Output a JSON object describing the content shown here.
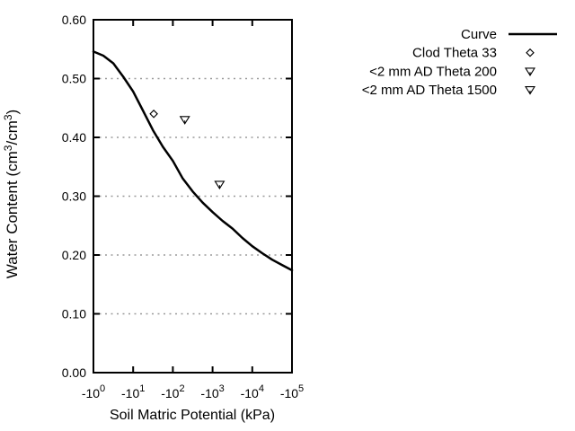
{
  "colors": {
    "foreground": "#000000",
    "grid": "#9a9a9a",
    "background": "#ffffff",
    "marker_fill": "#ffffff"
  },
  "chart_data": {
    "type": "line",
    "title": "",
    "xlabel": "Soil Matric Potential (kPa)",
    "ylabel": "Water Content (cm^3/cm^3)",
    "x_axis": {
      "scale": "negative-log10",
      "tick_labels": [
        "-10^0",
        "-10^1",
        "-10^2",
        "-10^3",
        "-10^4",
        "-10^5"
      ],
      "tick_decades": [
        0,
        1,
        2,
        3,
        4,
        5
      ],
      "range_decades": [
        0,
        5
      ]
    },
    "y_axis": {
      "tick_labels": [
        "0.00",
        "0.10",
        "0.20",
        "0.30",
        "0.40",
        "0.50",
        "0.60"
      ],
      "tick_values": [
        0.0,
        0.1,
        0.2,
        0.3,
        0.4,
        0.5,
        0.6
      ],
      "range": [
        0.0,
        0.6
      ],
      "grid_values": [
        0.1,
        0.2,
        0.3,
        0.4,
        0.5
      ]
    },
    "grid": {
      "style": "dotted",
      "horizontal": true,
      "vertical": false
    },
    "legend": {
      "position": "top-right-outside",
      "frame": false
    },
    "series": [
      {
        "name": "Curve",
        "kind": "line",
        "samples_decade_theta": [
          [
            0.0,
            0.546
          ],
          [
            0.25,
            0.539
          ],
          [
            0.5,
            0.526
          ],
          [
            0.75,
            0.503
          ],
          [
            1.0,
            0.478
          ],
          [
            1.25,
            0.445
          ],
          [
            1.5,
            0.412
          ],
          [
            1.75,
            0.384
          ],
          [
            2.0,
            0.36
          ],
          [
            2.25,
            0.33
          ],
          [
            2.5,
            0.308
          ],
          [
            2.75,
            0.289
          ],
          [
            3.0,
            0.273
          ],
          [
            3.25,
            0.258
          ],
          [
            3.5,
            0.245
          ],
          [
            3.75,
            0.229
          ],
          [
            4.0,
            0.215
          ],
          [
            4.25,
            0.203
          ],
          [
            4.5,
            0.192
          ],
          [
            4.75,
            0.183
          ],
          [
            5.0,
            0.174
          ]
        ]
      },
      {
        "name": "Clod Theta 33",
        "kind": "scatter",
        "marker": "open-diamond",
        "points_kpa_theta": [
          [
            -33,
            0.44
          ]
        ]
      },
      {
        "name": "<2 mm AD Theta 200",
        "kind": "scatter",
        "marker": "open-triangle-down",
        "points_kpa_theta": [
          [
            -200,
            0.43
          ]
        ]
      },
      {
        "name": "<2 mm AD Theta 1500",
        "kind": "scatter",
        "marker": "open-triangle-down",
        "points_kpa_theta": [
          [
            -1500,
            0.32
          ]
        ]
      }
    ]
  }
}
